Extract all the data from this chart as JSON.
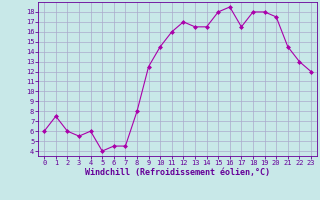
{
  "x": [
    0,
    1,
    2,
    3,
    4,
    5,
    6,
    7,
    8,
    9,
    10,
    11,
    12,
    13,
    14,
    15,
    16,
    17,
    18,
    19,
    20,
    21,
    22,
    23
  ],
  "y": [
    6,
    7.5,
    6,
    5.5,
    6,
    4,
    4.5,
    4.5,
    8,
    12.5,
    14.5,
    16,
    17,
    16.5,
    16.5,
    18,
    18.5,
    16.5,
    18,
    18,
    17.5,
    14.5,
    13,
    12
  ],
  "line_color": "#aa00aa",
  "marker": "D",
  "marker_size": 2,
  "bg_color": "#c8e8e8",
  "grid_color": "#aaaacc",
  "xlabel": "Windchill (Refroidissement éolien,°C)",
  "xlabel_fontsize": 6,
  "xlabel_color": "#660099",
  "tick_color": "#660099",
  "tick_fontsize": 5,
  "ylim": [
    3.5,
    19
  ],
  "xlim": [
    -0.5,
    23.5
  ],
  "yticks": [
    4,
    5,
    6,
    7,
    8,
    9,
    10,
    11,
    12,
    13,
    14,
    15,
    16,
    17,
    18
  ],
  "xticks": [
    0,
    1,
    2,
    3,
    4,
    5,
    6,
    7,
    8,
    9,
    10,
    11,
    12,
    13,
    14,
    15,
    16,
    17,
    18,
    19,
    20,
    21,
    22,
    23
  ]
}
